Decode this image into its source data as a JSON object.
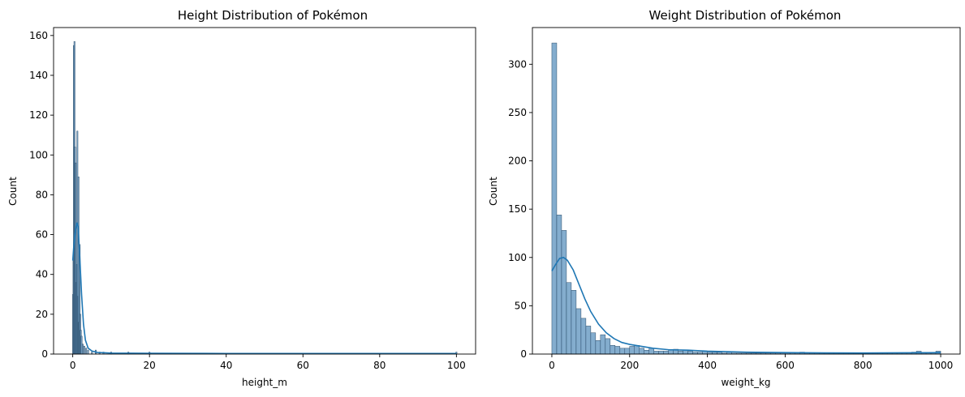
{
  "chart_data": [
    {
      "type": "bar",
      "title": "Height Distribution of Pokémon",
      "xlabel": "height_m",
      "ylabel": "Count",
      "xlim": [
        -5,
        105
      ],
      "ylim": [
        0,
        164
      ],
      "xticks": [
        0,
        20,
        40,
        60,
        80,
        100
      ],
      "yticks": [
        0,
        20,
        40,
        60,
        80,
        100,
        120,
        140,
        160
      ],
      "color": "#1f77b4",
      "bin_width": 0.3,
      "bins": [
        {
          "x": 0.1,
          "count": 30
        },
        {
          "x": 0.2,
          "count": 50
        },
        {
          "x": 0.3,
          "count": 155
        },
        {
          "x": 0.45,
          "count": 157
        },
        {
          "x": 0.6,
          "count": 104
        },
        {
          "x": 0.75,
          "count": 96
        },
        {
          "x": 0.9,
          "count": 36
        },
        {
          "x": 1.05,
          "count": 45
        },
        {
          "x": 1.2,
          "count": 112
        },
        {
          "x": 1.35,
          "count": 29
        },
        {
          "x": 1.5,
          "count": 89
        },
        {
          "x": 1.65,
          "count": 16
        },
        {
          "x": 1.8,
          "count": 55
        },
        {
          "x": 1.95,
          "count": 20
        },
        {
          "x": 2.1,
          "count": 12
        },
        {
          "x": 2.3,
          "count": 9
        },
        {
          "x": 2.6,
          "count": 5
        },
        {
          "x": 3.0,
          "count": 4
        },
        {
          "x": 3.5,
          "count": 3
        },
        {
          "x": 4.0,
          "count": 2
        },
        {
          "x": 5.0,
          "count": 1
        },
        {
          "x": 6.0,
          "count": 2
        },
        {
          "x": 7.0,
          "count": 1
        },
        {
          "x": 8.0,
          "count": 1
        },
        {
          "x": 10.0,
          "count": 1
        },
        {
          "x": 14.5,
          "count": 1
        },
        {
          "x": 20.0,
          "count": 1
        },
        {
          "x": 100.0,
          "count": 1
        }
      ],
      "kde": [
        [
          0,
          47
        ],
        [
          0.3,
          55
        ],
        [
          0.7,
          62
        ],
        [
          1.1,
          66
        ],
        [
          1.4,
          64
        ],
        [
          1.8,
          50
        ],
        [
          2.3,
          30
        ],
        [
          2.8,
          15
        ],
        [
          3.3,
          7
        ],
        [
          4.0,
          3
        ],
        [
          5.0,
          1.5
        ],
        [
          6.5,
          0.8
        ],
        [
          10,
          0.5
        ],
        [
          20,
          0.4
        ],
        [
          40,
          0.3
        ],
        [
          60,
          0.3
        ],
        [
          80,
          0.3
        ],
        [
          100,
          0.3
        ]
      ]
    },
    {
      "type": "bar",
      "title": "Weight Distribution of Pokémon",
      "xlabel": "weight_kg",
      "ylabel": "Count",
      "xlim": [
        -50,
        1050
      ],
      "ylim": [
        0,
        338
      ],
      "xticks": [
        0,
        200,
        400,
        600,
        800,
        1000
      ],
      "yticks": [
        0,
        50,
        100,
        150,
        200,
        250,
        300
      ],
      "color": "#1f77b4",
      "bin_width": 12.5,
      "bins": [
        {
          "x": 6.25,
          "count": 322
        },
        {
          "x": 18.75,
          "count": 144
        },
        {
          "x": 31.25,
          "count": 128
        },
        {
          "x": 43.75,
          "count": 74
        },
        {
          "x": 56.25,
          "count": 66
        },
        {
          "x": 68.75,
          "count": 47
        },
        {
          "x": 81.25,
          "count": 37
        },
        {
          "x": 93.75,
          "count": 29
        },
        {
          "x": 106.25,
          "count": 22
        },
        {
          "x": 118.75,
          "count": 14
        },
        {
          "x": 131.25,
          "count": 20
        },
        {
          "x": 143.75,
          "count": 16
        },
        {
          "x": 156.25,
          "count": 9
        },
        {
          "x": 168.75,
          "count": 8
        },
        {
          "x": 181.25,
          "count": 6
        },
        {
          "x": 193.75,
          "count": 6
        },
        {
          "x": 206.25,
          "count": 8
        },
        {
          "x": 218.75,
          "count": 9
        },
        {
          "x": 231.25,
          "count": 6
        },
        {
          "x": 243.75,
          "count": 4
        },
        {
          "x": 256.25,
          "count": 6
        },
        {
          "x": 268.75,
          "count": 3
        },
        {
          "x": 281.25,
          "count": 3
        },
        {
          "x": 293.75,
          "count": 3
        },
        {
          "x": 306.25,
          "count": 4
        },
        {
          "x": 318.75,
          "count": 5
        },
        {
          "x": 331.25,
          "count": 3
        },
        {
          "x": 343.75,
          "count": 4
        },
        {
          "x": 356.25,
          "count": 3
        },
        {
          "x": 368.75,
          "count": 2
        },
        {
          "x": 381.25,
          "count": 2
        },
        {
          "x": 393.75,
          "count": 3
        },
        {
          "x": 406.25,
          "count": 2
        },
        {
          "x": 418.75,
          "count": 2
        },
        {
          "x": 431.25,
          "count": 2
        },
        {
          "x": 443.75,
          "count": 1
        },
        {
          "x": 456.25,
          "count": 2
        },
        {
          "x": 468.75,
          "count": 1
        },
        {
          "x": 481.25,
          "count": 1
        },
        {
          "x": 493.75,
          "count": 1
        },
        {
          "x": 506.25,
          "count": 1
        },
        {
          "x": 518.75,
          "count": 1
        },
        {
          "x": 531.25,
          "count": 1
        },
        {
          "x": 543.75,
          "count": 1
        },
        {
          "x": 556.25,
          "count": 1
        },
        {
          "x": 568.75,
          "count": 1
        },
        {
          "x": 581.25,
          "count": 1
        },
        {
          "x": 593.75,
          "count": 1
        },
        {
          "x": 606.25,
          "count": 1
        },
        {
          "x": 618.75,
          "count": 1
        },
        {
          "x": 631.25,
          "count": 1
        },
        {
          "x": 643.75,
          "count": 2
        },
        {
          "x": 656.25,
          "count": 1
        },
        {
          "x": 668.75,
          "count": 1
        },
        {
          "x": 681.25,
          "count": 1
        },
        {
          "x": 693.75,
          "count": 1
        },
        {
          "x": 706.25,
          "count": 1
        },
        {
          "x": 718.75,
          "count": 1
        },
        {
          "x": 731.25,
          "count": 1
        },
        {
          "x": 743.75,
          "count": 1
        },
        {
          "x": 756.25,
          "count": 1
        },
        {
          "x": 768.75,
          "count": 1
        },
        {
          "x": 781.25,
          "count": 1
        },
        {
          "x": 793.75,
          "count": 1
        },
        {
          "x": 806.25,
          "count": 1
        },
        {
          "x": 818.75,
          "count": 1
        },
        {
          "x": 831.25,
          "count": 1
        },
        {
          "x": 843.75,
          "count": 1
        },
        {
          "x": 856.25,
          "count": 1
        },
        {
          "x": 868.75,
          "count": 1
        },
        {
          "x": 881.25,
          "count": 1
        },
        {
          "x": 893.75,
          "count": 1
        },
        {
          "x": 906.25,
          "count": 1
        },
        {
          "x": 918.75,
          "count": 1
        },
        {
          "x": 931.25,
          "count": 2
        },
        {
          "x": 943.75,
          "count": 3
        },
        {
          "x": 956.25,
          "count": 1
        },
        {
          "x": 968.75,
          "count": 1
        },
        {
          "x": 981.25,
          "count": 1
        },
        {
          "x": 993.75,
          "count": 3
        }
      ],
      "kde": [
        [
          0,
          86
        ],
        [
          10,
          93
        ],
        [
          20,
          99
        ],
        [
          30,
          100
        ],
        [
          40,
          97
        ],
        [
          55,
          87
        ],
        [
          70,
          72
        ],
        [
          85,
          57
        ],
        [
          100,
          44
        ],
        [
          120,
          31
        ],
        [
          140,
          22
        ],
        [
          160,
          16
        ],
        [
          180,
          12
        ],
        [
          200,
          10
        ],
        [
          230,
          8
        ],
        [
          260,
          6
        ],
        [
          300,
          4.5
        ],
        [
          350,
          4
        ],
        [
          400,
          3
        ],
        [
          450,
          2.5
        ],
        [
          500,
          2
        ],
        [
          600,
          1.5
        ],
        [
          700,
          1.2
        ],
        [
          800,
          1.1
        ],
        [
          900,
          1.3
        ],
        [
          1000,
          1.5
        ]
      ]
    }
  ]
}
